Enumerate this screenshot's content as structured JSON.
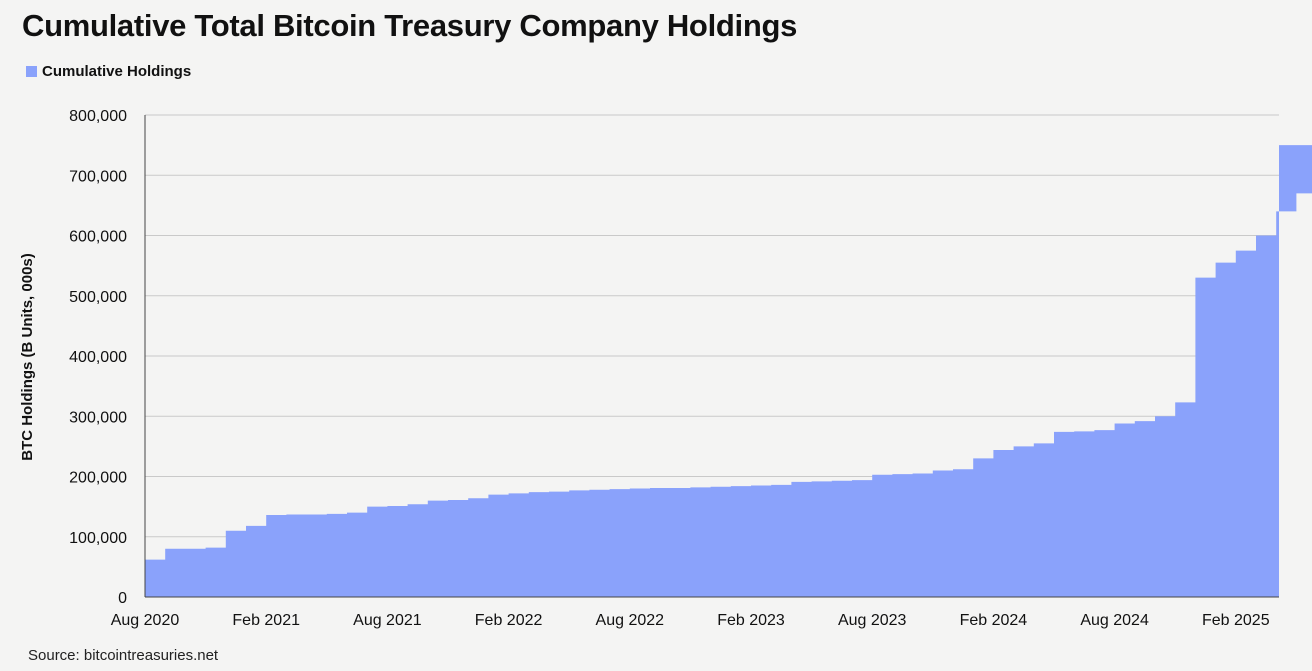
{
  "title": "Cumulative Total Bitcoin Treasury Company Holdings",
  "source": "Source: bitcointreasuries.net",
  "colors": {
    "area": "#8aa2fb",
    "grid": "#c9c9c9",
    "axis": "#444444",
    "background": "#f4f4f3"
  },
  "chart_data": {
    "type": "area",
    "title": "Cumulative Total Bitcoin Treasury Company Holdings",
    "xlabel": "",
    "ylabel": "BTC Holdings (B Units, 000s)",
    "ylim": [
      0,
      800000
    ],
    "y_ticks": [
      0,
      100000,
      200000,
      300000,
      400000,
      500000,
      600000,
      700000,
      800000
    ],
    "y_tick_labels": [
      "0",
      "100,000",
      "200,000",
      "300,000",
      "400,000",
      "500,000",
      "600,000",
      "700,000",
      "800,000"
    ],
    "x_ticks": [
      "2020-08",
      "2021-02",
      "2021-08",
      "2022-02",
      "2022-08",
      "2023-02",
      "2023-08",
      "2024-02",
      "2024-08",
      "2025-02"
    ],
    "x_tick_labels": [
      "Aug 2020",
      "Feb 2021",
      "Aug 2021",
      "Feb 2022",
      "Aug 2022",
      "Feb 2023",
      "Aug 2023",
      "Feb 2024",
      "Aug 2024",
      "Feb 2025"
    ],
    "xlim": [
      "2020-08",
      "2025-07"
    ],
    "grid": "horizontal",
    "legend_position": "top-left",
    "step": true,
    "series": [
      {
        "name": "Cumulative Holdings",
        "x": [
          "2020-08",
          "2020-09",
          "2020-10",
          "2020-11",
          "2020-12",
          "2021-01",
          "2021-02",
          "2021-03",
          "2021-04",
          "2021-05",
          "2021-06",
          "2021-07",
          "2021-08",
          "2021-09",
          "2021-10",
          "2021-11",
          "2021-12",
          "2022-01",
          "2022-02",
          "2022-03",
          "2022-04",
          "2022-05",
          "2022-06",
          "2022-07",
          "2022-08",
          "2022-09",
          "2022-10",
          "2022-11",
          "2022-12",
          "2023-01",
          "2023-02",
          "2023-03",
          "2023-04",
          "2023-05",
          "2023-06",
          "2023-07",
          "2023-08",
          "2023-09",
          "2023-10",
          "2023-11",
          "2023-12",
          "2024-01",
          "2024-02",
          "2024-03",
          "2024-04",
          "2024-05",
          "2024-06",
          "2024-07",
          "2024-08",
          "2024-09",
          "2024-10",
          "2024-11",
          "2024-12",
          "2025-01",
          "2025-02",
          "2025-03",
          "2025-04",
          "2025-05",
          "2025-06",
          "2025-07"
        ],
        "values": [
          62000,
          80000,
          80000,
          82000,
          110000,
          118000,
          136000,
          137000,
          137000,
          138000,
          140000,
          150000,
          151000,
          154000,
          160000,
          161000,
          164000,
          170000,
          172000,
          174000,
          175000,
          177000,
          178000,
          179000,
          180000,
          181000,
          181000,
          182000,
          183000,
          184000,
          185000,
          186000,
          191000,
          192000,
          193000,
          194000,
          203000,
          204000,
          205000,
          210000,
          212000,
          230000,
          244000,
          250000,
          255000,
          274000,
          275000,
          277000,
          288000,
          292000,
          300000,
          323000,
          530000,
          555000,
          575000,
          600000,
          640000,
          670000,
          720000,
          750000
        ]
      }
    ]
  }
}
